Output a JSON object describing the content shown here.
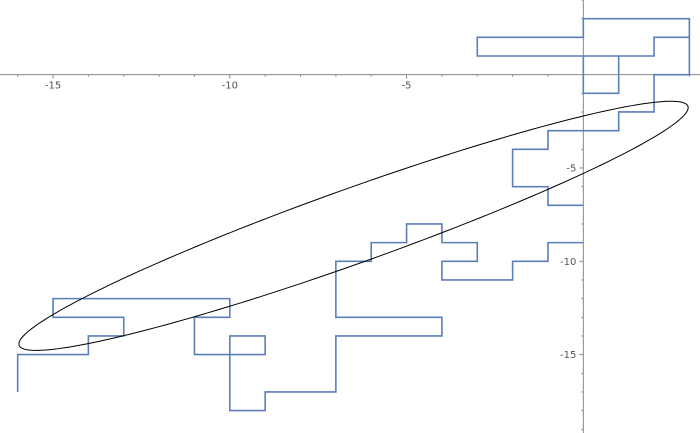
{
  "chart_data": {
    "type": "line",
    "title": "",
    "xlabel": "",
    "ylabel": "",
    "xlim": [
      -16.5,
      3.3
    ],
    "ylim": [
      -19.2,
      4
    ],
    "grid": false,
    "x_ticks": [
      -15,
      -10,
      -5
    ],
    "y_ticks": [
      -5,
      -10,
      -15
    ],
    "x_tick_labels": [
      "-15",
      "-10",
      "-5"
    ],
    "y_tick_labels": [
      "-5",
      "-10",
      "-15"
    ],
    "series": [
      {
        "color": "#5b7fb8",
        "points": [
          [
            -16,
            -17
          ],
          [
            -16,
            -15
          ],
          [
            -14,
            -15
          ],
          [
            -14,
            -14
          ],
          [
            -13,
            -14
          ],
          [
            -13,
            -13
          ],
          [
            -15,
            -13
          ],
          [
            -15,
            -12
          ],
          [
            -10,
            -12
          ],
          [
            -10,
            -13
          ],
          [
            -11,
            -13
          ],
          [
            -11,
            -15
          ],
          [
            -9,
            -15
          ],
          [
            -9,
            -14
          ],
          [
            -10,
            -14
          ],
          [
            -10,
            -16
          ],
          [
            -10,
            -18
          ],
          [
            -9,
            -18
          ],
          [
            -9,
            -17
          ],
          [
            -7,
            -17
          ],
          [
            -7,
            -16
          ],
          [
            -7,
            -14
          ],
          [
            -4,
            -14
          ],
          [
            -4,
            -13
          ],
          [
            -7,
            -13
          ],
          [
            -7,
            -10
          ],
          [
            -6,
            -10
          ],
          [
            -6,
            -9
          ],
          [
            -5,
            -9
          ],
          [
            -5,
            -8
          ],
          [
            -4,
            -8
          ],
          [
            -4,
            -9
          ],
          [
            -3,
            -9
          ],
          [
            -3,
            -10
          ],
          [
            -4,
            -10
          ],
          [
            -4,
            -11
          ],
          [
            -2,
            -11
          ],
          [
            -2,
            -10
          ],
          [
            -1,
            -10
          ],
          [
            -1,
            -9
          ],
          [
            0,
            -9
          ]
        ]
      },
      {
        "color": "#5b7fb8",
        "points": [
          [
            0,
            -7
          ],
          [
            -1,
            -7
          ],
          [
            -1,
            -6
          ],
          [
            -2,
            -6
          ],
          [
            -2,
            -4
          ],
          [
            -1,
            -4
          ],
          [
            -1,
            -3
          ],
          [
            1,
            -3
          ],
          [
            1,
            -2
          ],
          [
            2,
            -2
          ],
          [
            2,
            0
          ],
          [
            3,
            0
          ],
          [
            3,
            3
          ],
          [
            0,
            3
          ],
          [
            0,
            2
          ],
          [
            -3,
            2
          ],
          [
            -3,
            1
          ],
          [
            1,
            1
          ],
          [
            1,
            -1
          ],
          [
            0,
            -1
          ],
          [
            0,
            1
          ],
          [
            2,
            1
          ],
          [
            2,
            2
          ],
          [
            3,
            2
          ]
        ]
      }
    ],
    "ellipse": {
      "center": [
        -6.5,
        -8.1
      ],
      "rx": 11.45,
      "ry": 1.75,
      "angle_deg": 34.7,
      "color": "#000000"
    }
  }
}
